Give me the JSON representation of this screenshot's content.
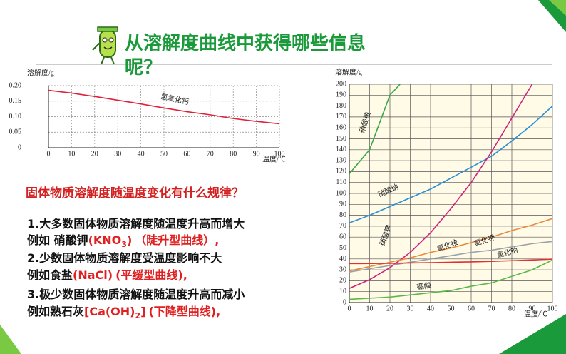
{
  "title": "从溶解度曲线中获得哪些信息呢？",
  "question": "固体物质溶解度随温度变化有什么规律？",
  "points": [
    [
      "1.大多数固体物质溶解度随温度升高而增大"
    ],
    [
      "例如 硝酸钾",
      "(KNO",
      "3",
      ")",
      "（陡升型曲线）,"
    ],
    [
      "2.少数固体物质溶解度受温度影响不大"
    ],
    [
      "例如食盐",
      "(NaCl)",
      "(平缓型曲线),"
    ],
    [
      "3.极少数固体物质溶解度随温度升高而减小"
    ],
    [
      "例如熟石灰",
      "[Ca(OH)",
      "2",
      "]",
      "(下降型曲线),"
    ]
  ],
  "chart_data": [
    {
      "type": "line",
      "y_label": "溶解度/g",
      "x_label": "温度/℃",
      "xlim": [
        0,
        100
      ],
      "xticks": [
        0,
        10,
        20,
        30,
        40,
        50,
        60,
        70,
        80,
        90,
        100
      ],
      "ylim": [
        0,
        0.2
      ],
      "yticks": [
        0,
        0.05,
        {
          "value": 0.1,
          "label": "0.10"
        },
        0.15,
        {
          "value": 0.2,
          "label": "0.20"
        }
      ],
      "grid": true,
      "series": [
        {
          "name": "氢氧化钙",
          "color": "#e0203a",
          "x": [
            0,
            10,
            20,
            30,
            40,
            50,
            60,
            70,
            80,
            90,
            100
          ],
          "values": [
            0.185,
            0.176,
            0.165,
            0.153,
            0.141,
            0.128,
            0.116,
            0.106,
            0.094,
            0.085,
            0.077
          ]
        }
      ]
    },
    {
      "type": "line",
      "y_label": "溶解度/g",
      "x_label": "温度/℃",
      "xlim": [
        0,
        100
      ],
      "xticks": [
        0,
        10,
        20,
        30,
        40,
        50,
        60,
        70,
        80,
        90,
        100
      ],
      "ylim": [
        0,
        200
      ],
      "yticks": [
        0,
        10,
        20,
        30,
        40,
        50,
        60,
        70,
        80,
        90,
        100,
        110,
        120,
        130,
        140,
        150,
        160,
        170,
        180,
        190,
        200
      ],
      "grid": true,
      "series": [
        {
          "name": "硝酸铵",
          "color": "#3aa84a",
          "x": [
            0,
            10,
            20,
            25
          ],
          "values": [
            118,
            140,
            190,
            200
          ]
        },
        {
          "name": "硝酸钠",
          "color": "#2a8fd8",
          "x": [
            0,
            10,
            20,
            30,
            40,
            50,
            60,
            70,
            80,
            90,
            100
          ],
          "values": [
            73,
            80,
            88,
            96,
            104,
            114,
            124,
            134,
            148,
            163,
            180
          ]
        },
        {
          "name": "硝酸钾",
          "color": "#d0207a",
          "x": [
            0,
            10,
            20,
            30,
            40,
            50,
            60,
            70,
            80,
            90
          ],
          "values": [
            13,
            21,
            32,
            46,
            64,
            86,
            110,
            138,
            169,
            200
          ]
        },
        {
          "name": "氯化铵",
          "color": "#e8883a",
          "x": [
            0,
            10,
            20,
            30,
            40,
            50,
            60,
            70,
            80,
            90,
            100
          ],
          "values": [
            29,
            33,
            37,
            41,
            46,
            50,
            55,
            60,
            66,
            71,
            77
          ]
        },
        {
          "name": "氯化钾",
          "color": "#9aa0a8",
          "x": [
            0,
            10,
            20,
            30,
            40,
            50,
            60,
            70,
            80,
            90,
            100
          ],
          "values": [
            28,
            31,
            34,
            37,
            40,
            43,
            46,
            48,
            51,
            54,
            56
          ]
        },
        {
          "name": "氯化钠",
          "color": "#e03030",
          "x": [
            0,
            10,
            20,
            30,
            40,
            50,
            60,
            70,
            80,
            90,
            100
          ],
          "values": [
            35.7,
            35.8,
            36,
            36.3,
            36.6,
            37,
            37.3,
            37.8,
            38.4,
            39,
            39.8
          ]
        },
        {
          "name": "硼酸",
          "color": "#5ab84a",
          "x": [
            0,
            10,
            20,
            30,
            40,
            50,
            60,
            70,
            80,
            90,
            100
          ],
          "values": [
            3,
            4,
            5,
            7,
            9,
            11,
            15,
            18,
            24,
            30,
            39
          ]
        }
      ]
    }
  ]
}
